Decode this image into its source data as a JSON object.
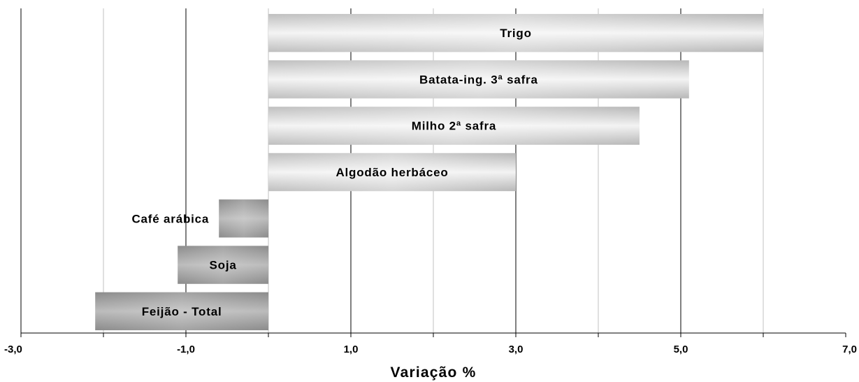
{
  "chart_data": {
    "type": "bar",
    "orientation": "horizontal",
    "title": "",
    "xlabel": "Variação %",
    "ylabel": "",
    "xlim": [
      -3,
      7
    ],
    "major_ticks": [
      -3,
      -1,
      1,
      3,
      5,
      7
    ],
    "tick_labels": [
      "-3,0",
      "-1,0",
      "1,0",
      "3,0",
      "5,0",
      "7,0"
    ],
    "minor_gridlines": [
      -2,
      0,
      2,
      4,
      6
    ],
    "grid": true,
    "legend": "none",
    "categories": [
      "Trigo",
      "Batata-ing. 3ª safra",
      "Milho 2ª safra",
      "Algodão herbáceo",
      "Café arábica",
      "Soja",
      "Feijão - Total"
    ],
    "values": [
      6.0,
      5.1,
      4.5,
      3.0,
      -0.6,
      -1.1,
      -2.1
    ],
    "colors": {
      "positive": "#c8c8c8",
      "negative": "#8f8f8f",
      "gridline_major": "#000000",
      "gridline_minor": "#c0c0c0"
    }
  }
}
